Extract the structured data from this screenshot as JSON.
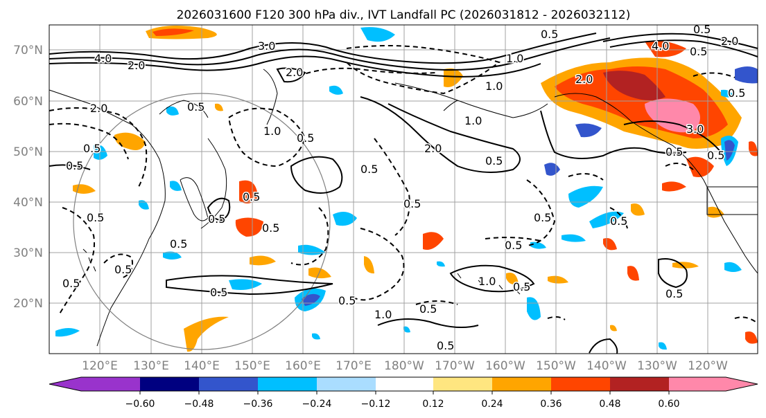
{
  "title": "2026031600 F120 300 hPa div., IVT Landfall PC (2026031812 - 2026032112)",
  "lat_labels": [
    "70°N",
    "60°N",
    "50°N",
    "40°N",
    "30°N",
    "20°N"
  ],
  "lon_labels": [
    "120°E",
    "130°E",
    "140°E",
    "150°E",
    "160°E",
    "170°E",
    "180°W",
    "170°W",
    "160°W",
    "150°W",
    "140°W",
    "130°W",
    "120°W"
  ],
  "colorbar": {
    "ticks": [
      "−0.60",
      "−0.48",
      "−0.36",
      "−0.24",
      "−0.12",
      "0.12",
      "0.24",
      "0.36",
      "0.48",
      "0.60"
    ],
    "colors": [
      "#9933cc",
      "#000080",
      "#3355cc",
      "#00bfff",
      "#aaddff",
      "#ffffff",
      "#ffe680",
      "#ffa500",
      "#ff4500",
      "#b22222",
      "#ff88aa"
    ]
  },
  "contour_labels": [
    "4.0",
    "2.0",
    "3.0",
    "2.0",
    "4.0",
    "0.5",
    "1.0",
    "2.0",
    "0.5",
    "2.0",
    "0.5",
    "0.5",
    "0.5",
    "0.5",
    "0.5",
    "0.5",
    "1.0",
    "0.5",
    "0.5",
    "0.5",
    "0.5",
    "0.5",
    "1.0",
    "0.5",
    "2.0",
    "0.5",
    "3.0",
    "2.0",
    "0.5",
    "0.5",
    "0.5",
    "1.0",
    "0.5",
    "0.5",
    "0.5",
    "0.5",
    "1.0",
    "0.5",
    "0.5",
    "0.5",
    "0.5",
    "0.5",
    "1.0",
    "0.5",
    "0.5"
  ]
}
